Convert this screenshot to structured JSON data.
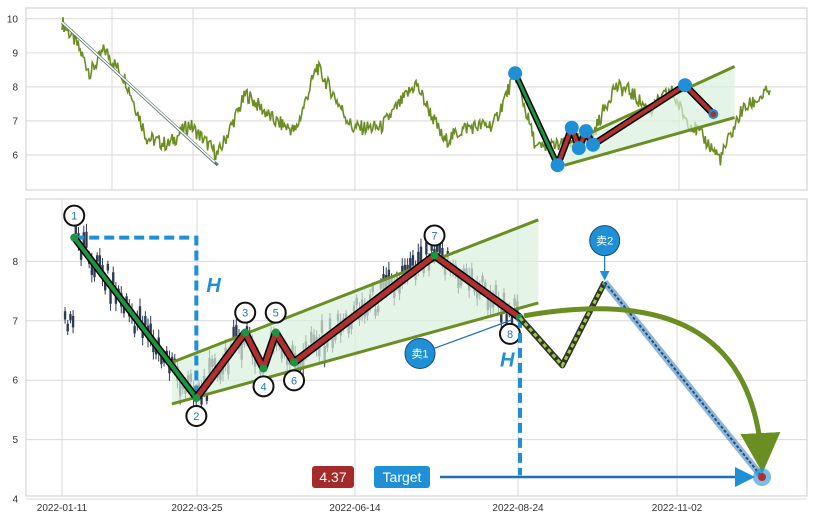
{
  "chart_data": [
    {
      "id": "overview",
      "type": "line",
      "title": "",
      "xlabel": "",
      "ylabel": "",
      "ylim": [
        5.5,
        10.2
      ],
      "yticks": [
        "10",
        "9",
        "8",
        "7",
        "6"
      ],
      "grid": true,
      "series_color": "#6b8e23",
      "price_anchors": [
        {
          "t": 0,
          "v": 9.9
        },
        {
          "t": 2,
          "v": 9.3
        },
        {
          "t": 4,
          "v": 8.4
        },
        {
          "t": 6,
          "v": 9.1
        },
        {
          "t": 9,
          "v": 8.2
        },
        {
          "t": 12,
          "v": 6.5
        },
        {
          "t": 15,
          "v": 6.3
        },
        {
          "t": 18,
          "v": 6.9
        },
        {
          "t": 22,
          "v": 6.0
        },
        {
          "t": 26,
          "v": 7.8
        },
        {
          "t": 30,
          "v": 7.0
        },
        {
          "t": 33,
          "v": 6.7
        },
        {
          "t": 36,
          "v": 8.6
        },
        {
          "t": 38,
          "v": 7.9
        },
        {
          "t": 41,
          "v": 6.8
        },
        {
          "t": 45,
          "v": 6.8
        },
        {
          "t": 50,
          "v": 8.1
        },
        {
          "t": 54,
          "v": 6.4
        },
        {
          "t": 57,
          "v": 6.8
        },
        {
          "t": 61,
          "v": 6.9
        },
        {
          "t": 64,
          "v": 8.4
        },
        {
          "t": 67,
          "v": 6.2
        },
        {
          "t": 71,
          "v": 6.3
        },
        {
          "t": 75,
          "v": 6.6
        },
        {
          "t": 78,
          "v": 8.0
        },
        {
          "t": 80,
          "v": 7.9
        },
        {
          "t": 83,
          "v": 7.3
        },
        {
          "t": 86,
          "v": 7.9
        },
        {
          "t": 88,
          "v": 7.1
        },
        {
          "t": 91,
          "v": 6.4
        },
        {
          "t": 93,
          "v": 5.9
        },
        {
          "t": 96,
          "v": 7.3
        },
        {
          "t": 100,
          "v": 7.9
        }
      ],
      "trend_arrow": {
        "from": {
          "t": 0,
          "v": 9.9
        },
        "to": {
          "t": 22,
          "v": 5.7
        }
      },
      "pattern_points": [
        {
          "t": 64,
          "v": 8.4
        },
        {
          "t": 70,
          "v": 5.7
        },
        {
          "t": 72,
          "v": 6.8
        },
        {
          "t": 73,
          "v": 6.2
        },
        {
          "t": 74,
          "v": 6.7
        },
        {
          "t": 75,
          "v": 6.3
        },
        {
          "t": 88,
          "v": 8.05
        },
        {
          "t": 92,
          "v": 7.2
        }
      ],
      "channel": {
        "upper": [
          {
            "t": 71,
            "v": 6.3
          },
          {
            "t": 95,
            "v": 8.6
          }
        ],
        "lower": [
          {
            "t": 71,
            "v": 5.7
          },
          {
            "t": 95,
            "v": 7.1
          }
        ]
      }
    },
    {
      "id": "pattern",
      "type": "line",
      "title": "",
      "xlabel": "",
      "ylabel": "",
      "ylim": [
        4,
        9
      ],
      "yticks": [
        "8",
        "7",
        "6",
        "5",
        "4"
      ],
      "xticks": [
        "2022-01-11",
        "2022-03-25",
        "2022-06-14",
        "2022-08-24",
        "2022-11-02"
      ],
      "grid": true,
      "pattern_points": [
        {
          "label": "1",
          "t": 2,
          "v": 8.4
        },
        {
          "label": "2",
          "t": 22,
          "v": 5.7
        },
        {
          "label": "3",
          "t": 30,
          "v": 6.8
        },
        {
          "label": "4",
          "t": 33,
          "v": 6.2
        },
        {
          "label": "5",
          "t": 35,
          "v": 6.8
        },
        {
          "label": "6",
          "t": 38,
          "v": 6.3
        },
        {
          "label": "7",
          "t": 61,
          "v": 8.1
        },
        {
          "label": "8",
          "t": 75,
          "v": 7.05
        }
      ],
      "channel": {
        "upper": [
          {
            "t": 18,
            "v": 6.3
          },
          {
            "t": 78,
            "v": 8.7
          }
        ],
        "lower": [
          {
            "t": 18,
            "v": 5.6
          },
          {
            "t": 78,
            "v": 7.3
          }
        ]
      },
      "height_marker": {
        "label": "H",
        "top": 8.4,
        "bottom": 5.7
      },
      "projection_height_marker": {
        "label": "H",
        "top": 7.05,
        "bottom": 4.4
      },
      "forecast_path": [
        {
          "t": 75,
          "v": 7.05
        },
        {
          "t": 82,
          "v": 6.25
        },
        {
          "t": 89,
          "v": 7.65
        },
        {
          "t": 115,
          "v": 4.37
        }
      ],
      "signals": [
        {
          "label": "卖1",
          "t": 62,
          "v": 6.45
        },
        {
          "label": "卖2",
          "t": 89,
          "v": 8.35
        }
      ],
      "target": {
        "label": "Target",
        "value": "4.37",
        "v": 4.37
      },
      "candles_range": [
        {
          "t": 0,
          "v": 8.4
        },
        {
          "t": 75,
          "v": 7.05
        }
      ]
    }
  ],
  "colors": {
    "price": "#6b8e23",
    "candles": "#2f3b55",
    "down_leg": "#1a9641",
    "up_leg": "#b03030",
    "accent": "#1f8fd6",
    "badge_value": "#a52a2a",
    "badge_target": "#1f8fd6"
  }
}
